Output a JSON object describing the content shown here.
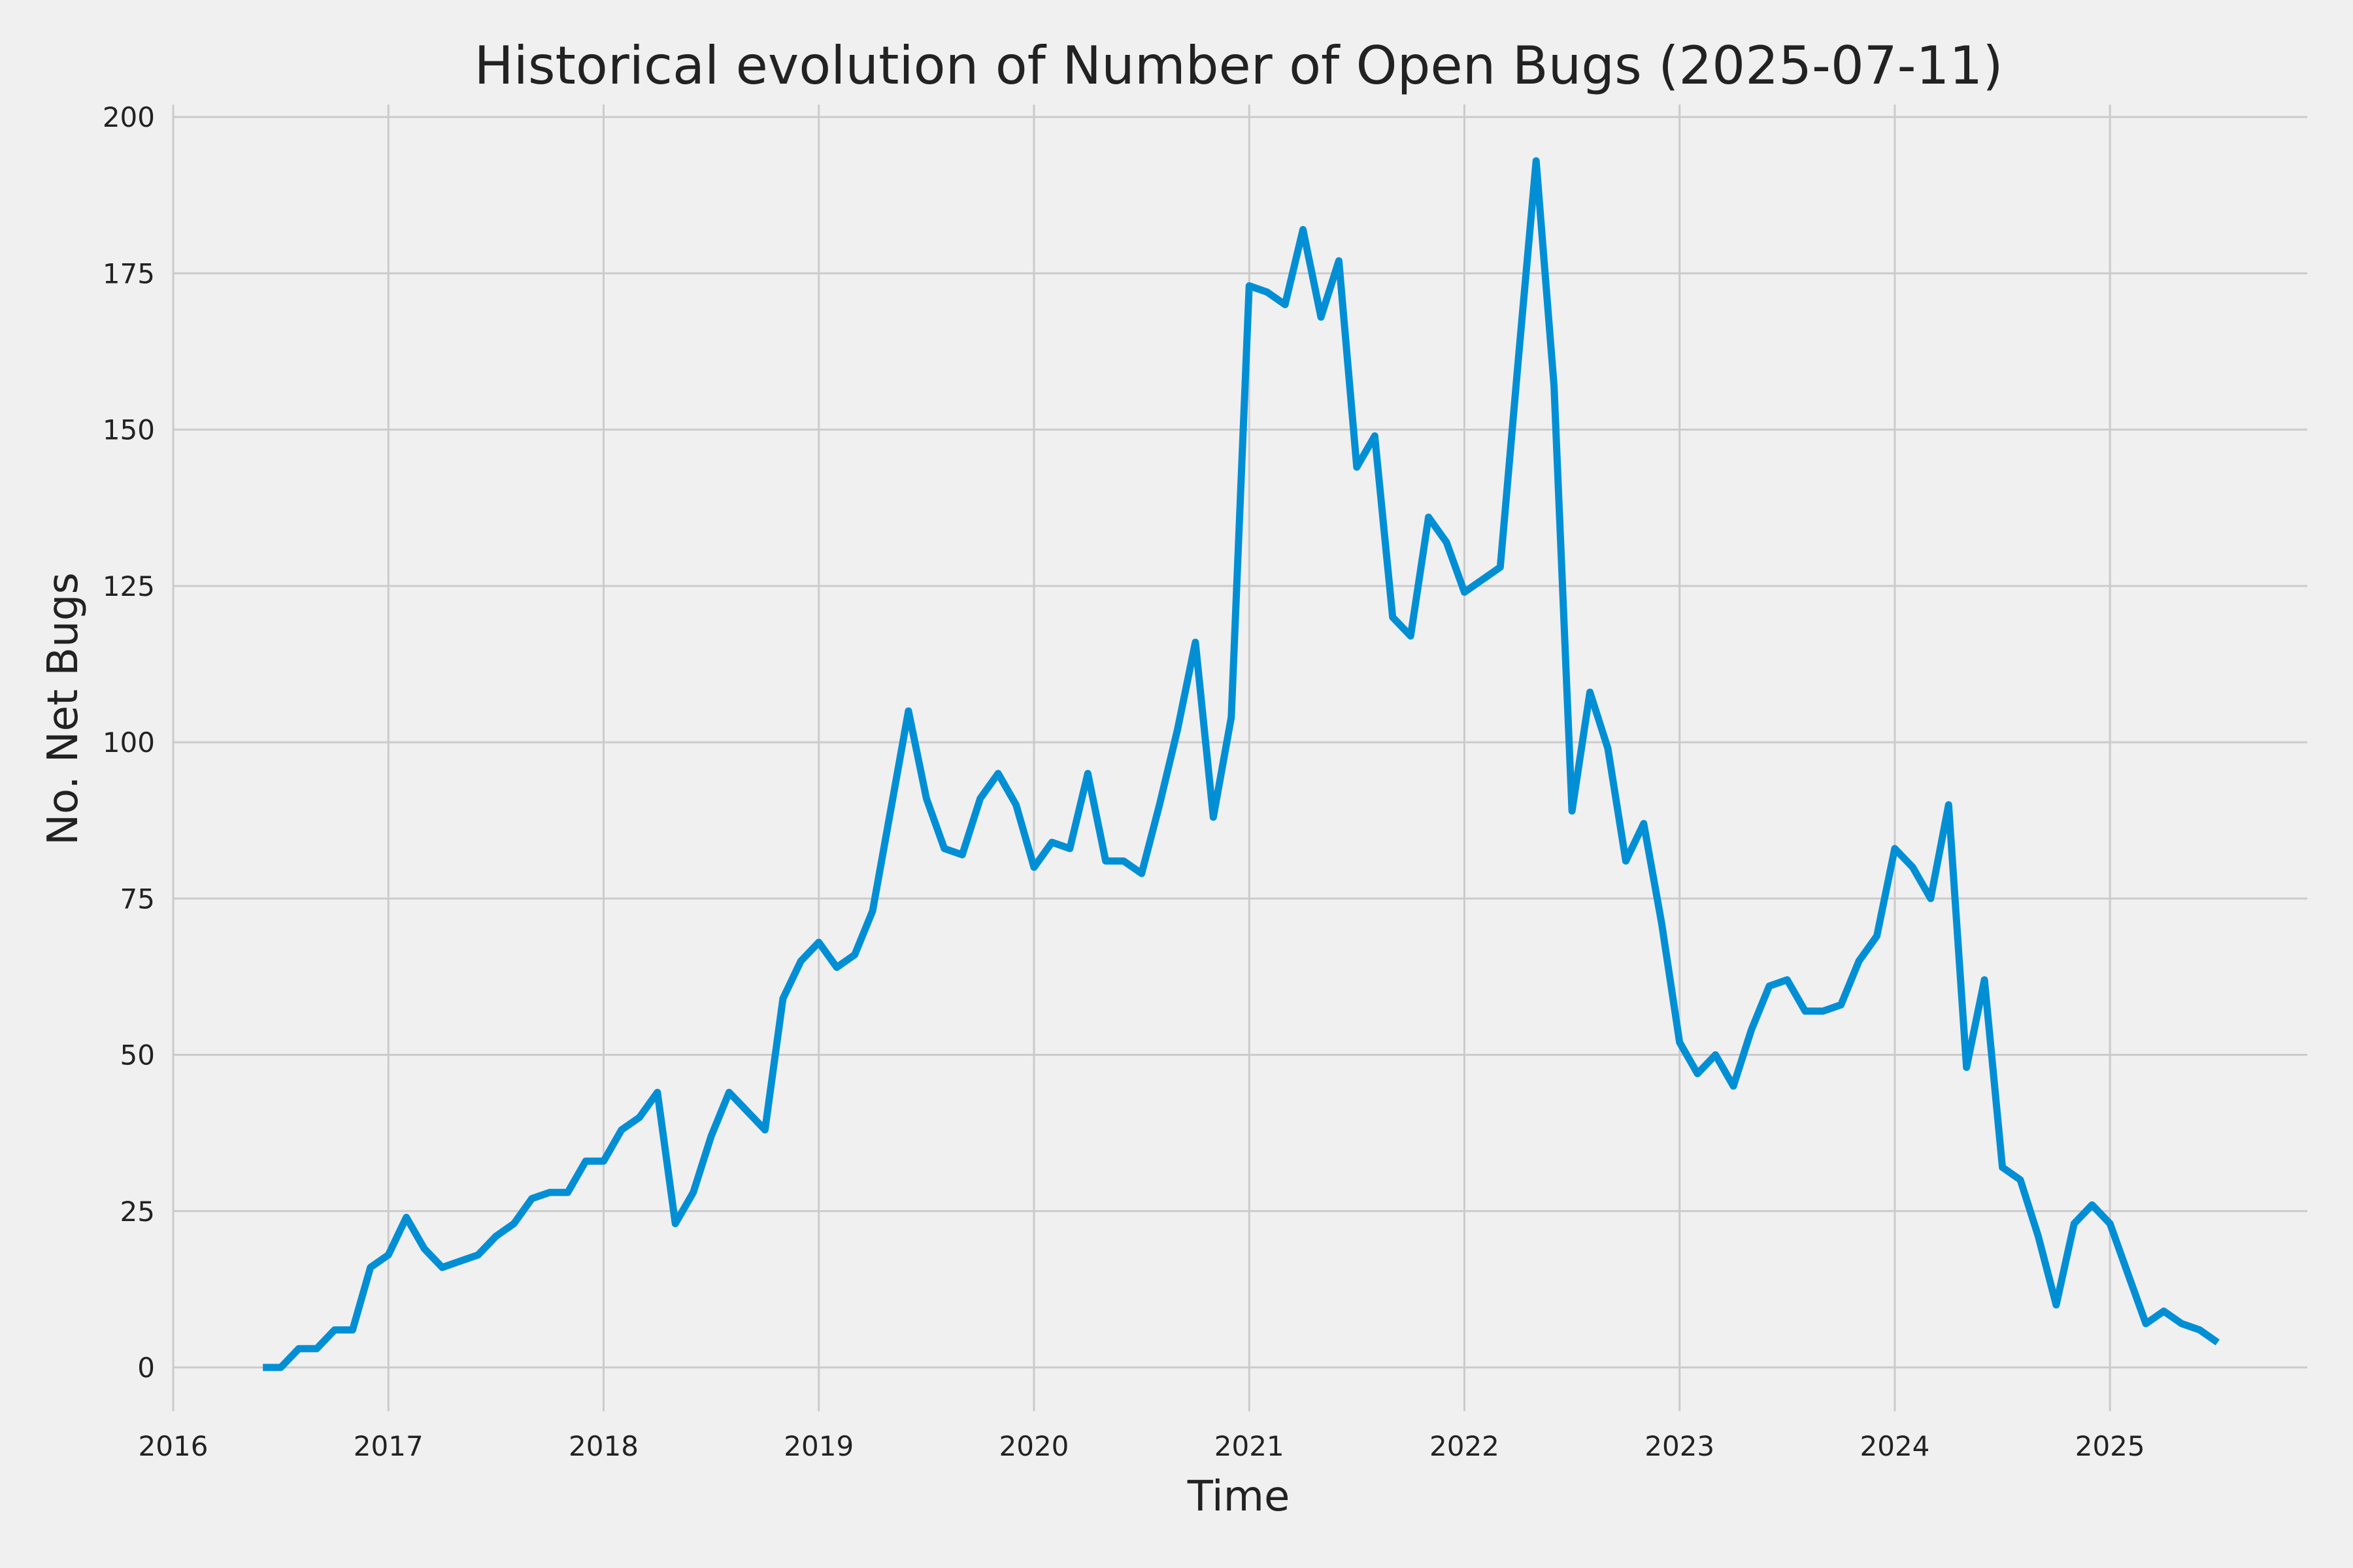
{
  "chart_data": {
    "type": "line",
    "title": "Historical evolution of Number of Open Bugs (2025-07-11)",
    "xlabel": "Time",
    "ylabel": "No. Net Bugs",
    "xlim": [
      "2016-01-01",
      "2025-12-01"
    ],
    "ylim": [
      -7,
      202
    ],
    "grid": true,
    "x_ticks": [
      "2016",
      "2017",
      "2018",
      "2019",
      "2020",
      "2021",
      "2022",
      "2023",
      "2024",
      "2025"
    ],
    "y_ticks": [
      0,
      25,
      50,
      75,
      100,
      125,
      150,
      175,
      200
    ],
    "colors": {
      "background": "#f0f0f0",
      "line": "#008fd5",
      "grid": "#cbcbcb"
    },
    "series": [
      {
        "x": [
          "2016-06",
          "2016-07",
          "2016-08",
          "2016-09",
          "2016-10",
          "2016-11",
          "2016-12",
          "2017-01",
          "2017-02",
          "2017-03",
          "2017-04",
          "2017-05",
          "2017-06",
          "2017-07",
          "2017-08",
          "2017-09",
          "2017-10",
          "2017-11",
          "2017-12",
          "2018-01",
          "2018-02",
          "2018-03",
          "2018-04",
          "2018-05",
          "2018-06",
          "2018-07",
          "2018-08",
          "2018-09",
          "2018-10",
          "2018-11",
          "2018-12",
          "2019-01",
          "2019-02",
          "2019-03",
          "2019-04",
          "2019-05",
          "2019-06",
          "2019-07",
          "2019-08",
          "2019-09",
          "2019-10",
          "2019-11",
          "2019-12",
          "2020-01",
          "2020-02",
          "2020-03",
          "2020-04",
          "2020-05",
          "2020-06",
          "2020-07",
          "2020-08",
          "2020-09",
          "2020-10",
          "2020-11",
          "2020-12",
          "2021-01",
          "2021-02",
          "2021-03",
          "2021-04",
          "2021-05",
          "2021-06",
          "2021-07",
          "2021-08",
          "2021-09",
          "2021-10",
          "2021-11",
          "2021-12",
          "2022-01",
          "2022-02",
          "2022-03",
          "2022-04",
          "2022-05",
          "2022-06",
          "2022-07",
          "2022-08",
          "2022-09",
          "2022-10",
          "2022-11",
          "2022-12",
          "2023-01",
          "2023-02",
          "2023-03",
          "2023-04",
          "2023-05",
          "2023-06",
          "2023-07",
          "2023-08",
          "2023-09",
          "2023-10",
          "2023-11",
          "2023-12",
          "2024-01",
          "2024-02",
          "2024-03",
          "2024-04",
          "2024-05",
          "2024-06",
          "2024-07",
          "2024-08",
          "2024-09",
          "2024-10",
          "2024-11",
          "2024-12",
          "2025-01",
          "2025-02",
          "2025-03",
          "2025-04",
          "2025-05",
          "2025-06",
          "2025-07"
        ],
        "values": [
          0,
          0,
          3,
          3,
          6,
          6,
          16,
          18,
          24,
          19,
          16,
          17,
          18,
          21,
          23,
          27,
          28,
          28,
          33,
          33,
          38,
          40,
          44,
          23,
          28,
          37,
          44,
          41,
          38,
          59,
          65,
          68,
          64,
          66,
          73,
          89,
          105,
          91,
          83,
          82,
          91,
          95,
          90,
          80,
          84,
          83,
          95,
          81,
          81,
          79,
          90,
          102,
          116,
          88,
          104,
          173,
          172,
          170,
          182,
          168,
          177,
          144,
          149,
          120,
          117,
          136,
          132,
          124,
          126,
          128,
          161,
          193,
          157,
          89,
          108,
          99,
          81,
          87,
          71,
          52,
          47,
          50,
          45,
          54,
          61,
          62,
          57,
          57,
          58,
          65,
          69,
          83,
          80,
          75,
          90,
          48,
          62,
          32,
          30,
          21,
          10,
          23,
          26,
          23,
          15,
          7,
          9,
          7,
          6,
          4
        ]
      }
    ]
  }
}
